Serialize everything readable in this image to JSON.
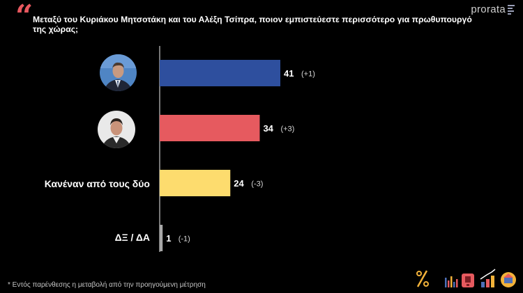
{
  "header": {
    "question": "Μεταξύ του Κυριάκου Μητσοτάκη και του Αλέξη Τσίπρα, ποιον εμπιστεύεστε περισσότερο για πρωθυπουργό της χώρας;",
    "brand": "prorata",
    "quote_glyph": "“"
  },
  "footnote": "* Εντός παρένθεσης η μεταβολή από την προηγούμενη μέτρηση",
  "chart_data": {
    "type": "bar",
    "orientation": "horizontal",
    "categories": [
      "Κυριάκος Μητσοτάκης",
      "Αλέξης Τσίπρας",
      "Κανέναν από τους δύο",
      "ΔΞ / ΔΑ"
    ],
    "category_labels": [
      "",
      "",
      "Κανέναν από τους δύο",
      "ΔΞ / ΔΑ"
    ],
    "values": [
      41,
      34,
      24,
      1
    ],
    "changes": [
      "(+1)",
      "(+3)",
      "(-3)",
      "(-1)"
    ],
    "colors": [
      "#2e4f9e",
      "#e65a5f",
      "#fddc6e",
      "#a8a8a8"
    ],
    "label_images": [
      "photo-mitsotakis",
      "photo-tsipras",
      "",
      ""
    ]
  },
  "icons": [
    "percent-icon",
    "bar-chart-icon",
    "trophy-icon",
    "trend-chart-icon",
    "map-icon"
  ]
}
